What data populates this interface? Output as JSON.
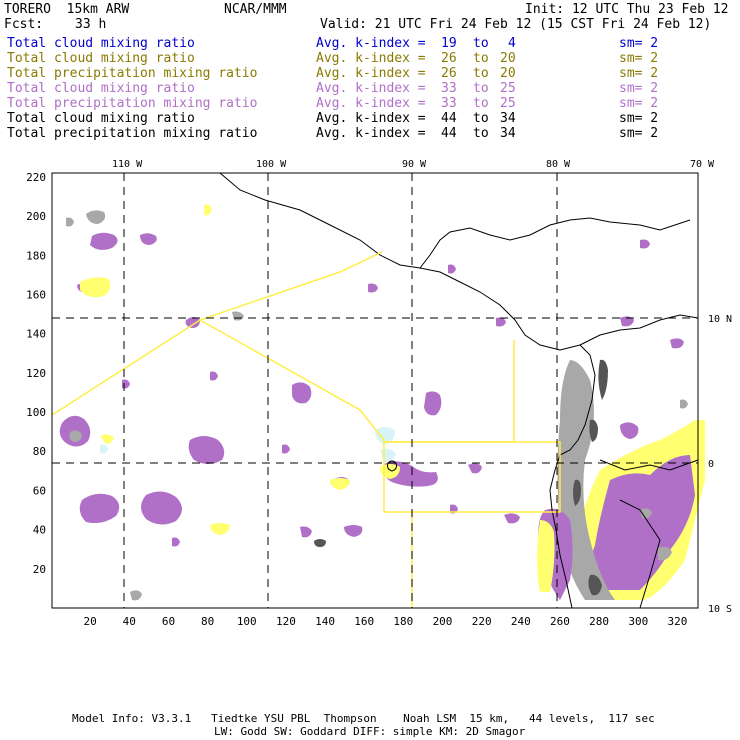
{
  "header": {
    "model": "TORERO  15km ARW",
    "org": "NCAR/MMM",
    "init": "Init: 12 UTC Thu 23 Feb 12",
    "fcst_label": "Fcst:",
    "fcst_value": "33 h",
    "valid": "Valid: 21 UTC Fri 24 Feb 12 (15 CST Fri 24 Feb 12)"
  },
  "legend": [
    {
      "field": "Total cloud mixing ratio",
      "kindex": "Avg. k-index =",
      "lo": "19",
      "to": "to",
      "hi": "4",
      "sm": "sm= 2",
      "color": "#0000cc"
    },
    {
      "field": "Total cloud mixing ratio",
      "kindex": "Avg. k-index =",
      "lo": "26",
      "to": "to",
      "hi": "20",
      "sm": "sm= 2",
      "color": "#8a7a00"
    },
    {
      "field": "Total precipitation mixing ratio",
      "kindex": "Avg. k-index =",
      "lo": "26",
      "to": "to",
      "hi": "20",
      "sm": "sm= 2",
      "color": "#8a7a00"
    },
    {
      "field": "Total cloud mixing ratio",
      "kindex": "Avg. k-index =",
      "lo": "33",
      "to": "to",
      "hi": "25",
      "sm": "sm= 2",
      "color": "#b070c8"
    },
    {
      "field": "Total precipitation mixing ratio",
      "kindex": "Avg. k-index =",
      "lo": "33",
      "to": "to",
      "hi": "25",
      "sm": "sm= 2",
      "color": "#b070c8"
    },
    {
      "field": "Total cloud mixing ratio",
      "kindex": "Avg. k-index =",
      "lo": "44",
      "to": "to",
      "hi": "34",
      "sm": "sm= 2",
      "color": "#000000"
    },
    {
      "field": "Total precipitation mixing ratio",
      "kindex": "Avg. k-index =",
      "lo": "44",
      "to": "to",
      "hi": "34",
      "sm": "sm= 2",
      "color": "#000000"
    }
  ],
  "map": {
    "lon_labels": [
      "110 W",
      "100 W",
      "90 W",
      "80 W",
      "70 W"
    ],
    "lat_labels": [
      "10 N",
      "0",
      "10 S"
    ],
    "x_ticks": [
      "20",
      "40",
      "60",
      "80",
      "100",
      "120",
      "140",
      "160",
      "180",
      "200",
      "220",
      "240",
      "260",
      "280",
      "300",
      "320"
    ],
    "y_ticks": [
      "220",
      "200",
      "180",
      "160",
      "140",
      "120",
      "100",
      "80",
      "60",
      "40",
      "20"
    ],
    "colors": {
      "purple": "#b070c8",
      "yellow": "#ffff70",
      "gray": "#a8a8a8",
      "dark": "#555555",
      "cyan": "#d8f4f8",
      "domain_line": "#ffee44",
      "grid": "#000000"
    }
  },
  "footer": {
    "line1": "Model Info: V3.3.1   Tiedtke YSU PBL  Thompson    Noah LSM  15 km,   44 levels,  117 sec",
    "line2": "LW: Godd SW: Goddard DIFF: simple KM: 2D Smagor"
  }
}
